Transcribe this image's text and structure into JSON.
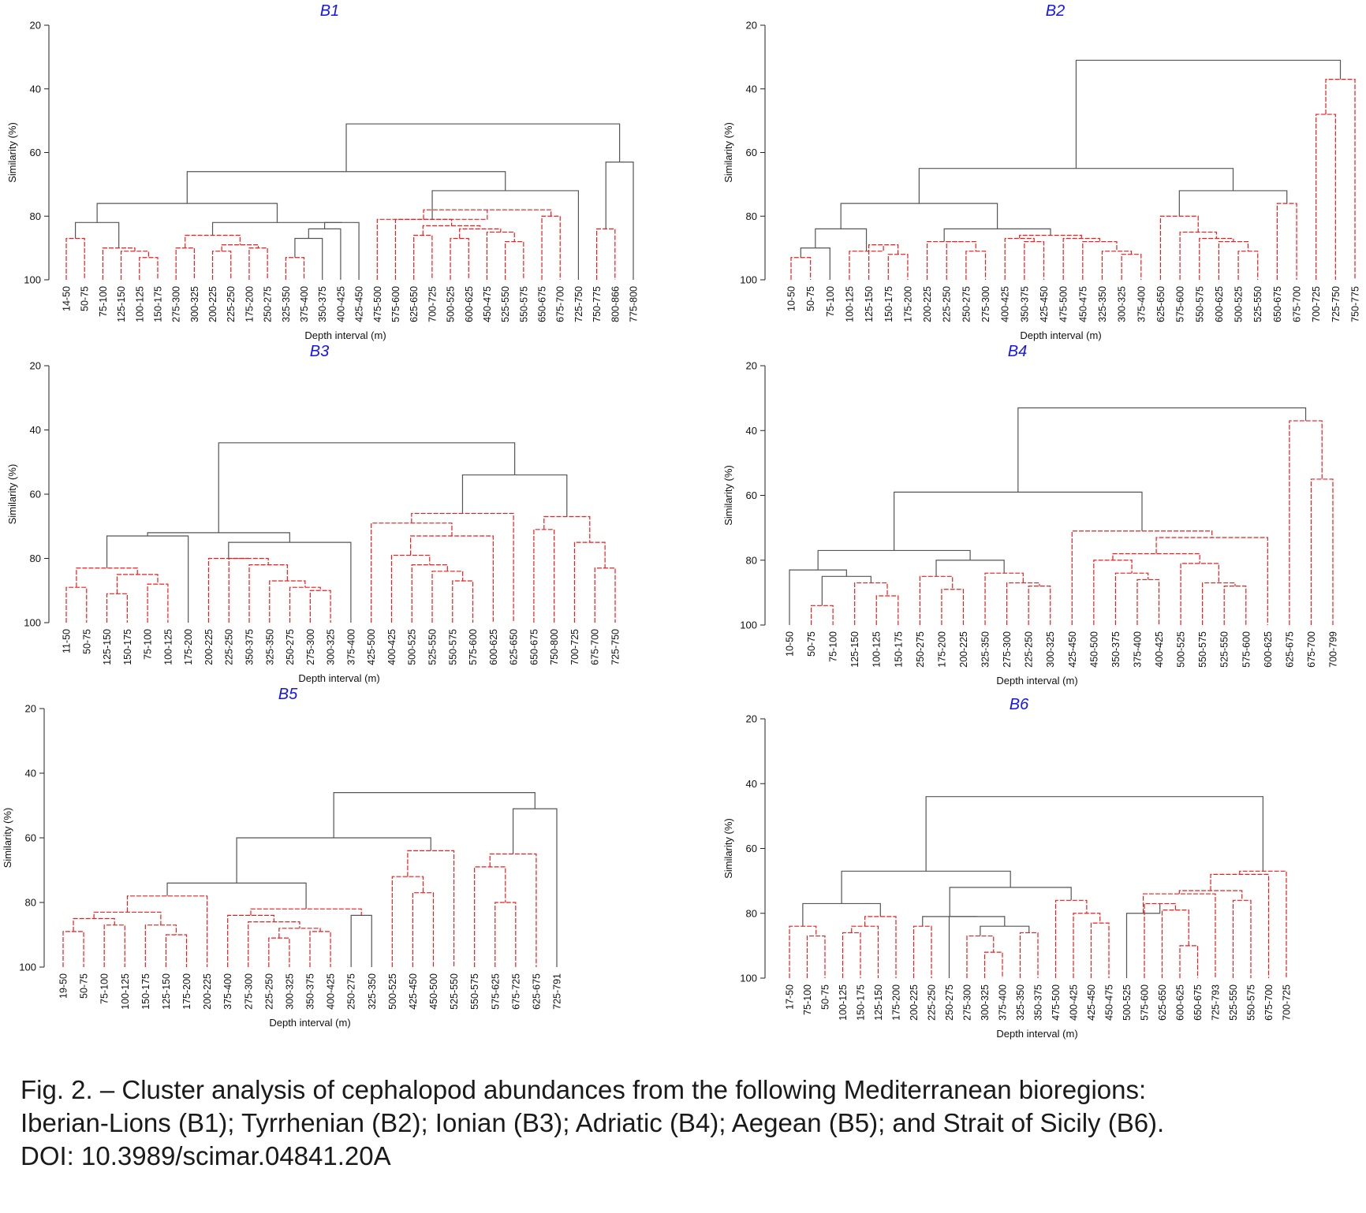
{
  "chart_data": [
    {
      "type": "dendrogram",
      "title": "B1",
      "xlabel": "Depth interval (m)",
      "ylabel": "Similarity (%)",
      "ylim": [
        20,
        100
      ],
      "yticks": [
        20,
        40,
        60,
        80,
        100
      ],
      "leaves": [
        "14-50",
        "50-75",
        "75-100",
        "125-150",
        "100-125",
        "150-175",
        "275-300",
        "300-325",
        "200-225",
        "225-250",
        "175-200",
        "250-275",
        "325-350",
        "375-400",
        "350-375",
        "400-425",
        "425-450",
        "475-500",
        "575-600",
        "625-650",
        "700-725",
        "500-525",
        "600-625",
        "450-475",
        "525-550",
        "550-575",
        "650-675",
        "675-700",
        "725-750",
        "750-775",
        "800-866",
        "775-800"
      ],
      "merges": [
        [
          "L:0",
          "L:1",
          87,
          "sig"
        ],
        [
          "L:4",
          "L:5",
          93,
          "sig"
        ],
        [
          "L:3",
          "N:1",
          91,
          "sig"
        ],
        [
          "L:2",
          "N:2",
          90,
          "sig"
        ],
        [
          "N:0",
          "N:3",
          82,
          "ns"
        ],
        [
          "L:6",
          "L:7",
          90,
          "sig"
        ],
        [
          "L:8",
          "L:9",
          91,
          "sig"
        ],
        [
          "L:10",
          "L:11",
          90,
          "sig"
        ],
        [
          "N:6",
          "N:7",
          89,
          "sig"
        ],
        [
          "N:5",
          "N:8",
          86,
          "sig"
        ],
        [
          "L:12",
          "L:13",
          93,
          "sig"
        ],
        [
          "N:10",
          "L:14",
          87,
          "ns"
        ],
        [
          "N:11",
          "L:15",
          84,
          "ns"
        ],
        [
          "L:16",
          "N:12",
          82,
          "ns"
        ],
        [
          "N:9",
          "N:13",
          82,
          "ns"
        ],
        [
          "N:4",
          "N:14",
          76,
          "ns"
        ],
        [
          "L:19",
          "L:20",
          86,
          "sig"
        ],
        [
          "L:21",
          "L:22",
          87,
          "sig"
        ],
        [
          "L:24",
          "L:25",
          88,
          "sig"
        ],
        [
          "L:23",
          "N:18",
          85,
          "sig"
        ],
        [
          "N:17",
          "N:19",
          84,
          "sig"
        ],
        [
          "N:16",
          "N:20",
          83,
          "sig"
        ],
        [
          "L:18",
          "N:21",
          81,
          "sig"
        ],
        [
          "L:26",
          "L:27",
          80,
          "sig"
        ],
        [
          "N:22",
          "N:23",
          78,
          "sig"
        ],
        [
          "L:17",
          "N:24",
          81,
          "sig"
        ],
        [
          "N:25",
          "L:28",
          72,
          "ns"
        ],
        [
          "N:15",
          "N:26",
          66,
          "ns"
        ],
        [
          "L:29",
          "L:30",
          84,
          "sig"
        ],
        [
          "N:28",
          "L:31",
          63,
          "ns"
        ],
        [
          "N:27",
          "N:29",
          51,
          "ns"
        ]
      ]
    },
    {
      "type": "dendrogram",
      "title": "B2",
      "xlabel": "Depth interval (m)",
      "ylabel": "Similarity (%)",
      "ylim": [
        20,
        100
      ],
      "yticks": [
        20,
        40,
        60,
        80,
        100
      ],
      "leaves": [
        "10-50",
        "50-75",
        "75-100",
        "100-125",
        "125-150",
        "150-175",
        "175-200",
        "200-225",
        "225-250",
        "250-275",
        "275-300",
        "400-425",
        "350-375",
        "425-450",
        "475-500",
        "450-475",
        "325-350",
        "300-325",
        "375-400",
        "625-650",
        "575-600",
        "550-575",
        "600-625",
        "500-525",
        "525-550",
        "650-675",
        "675-700",
        "700-725",
        "725-750",
        "750-775"
      ],
      "merges": [
        [
          "L:0",
          "L:1",
          93,
          "sig"
        ],
        [
          "N:0",
          "L:2",
          90,
          "ns"
        ],
        [
          "L:5",
          "L:6",
          92,
          "sig"
        ],
        [
          "L:4",
          "N:2",
          89,
          "sig"
        ],
        [
          "L:3",
          "N:3",
          91,
          "sig"
        ],
        [
          "N:1",
          "N:4",
          84,
          "ns"
        ],
        [
          "L:9",
          "L:10",
          91,
          "sig"
        ],
        [
          "L:8",
          "N:6",
          88,
          "sig"
        ],
        [
          "L:7",
          "N:7",
          88,
          "sig"
        ],
        [
          "L:12",
          "L:13",
          88,
          "sig"
        ],
        [
          "L:11",
          "N:9",
          87,
          "sig"
        ],
        [
          "L:17",
          "L:18",
          92,
          "sig"
        ],
        [
          "L:16",
          "N:11",
          91,
          "sig"
        ],
        [
          "L:15",
          "N:12",
          88,
          "sig"
        ],
        [
          "L:14",
          "N:13",
          87,
          "sig"
        ],
        [
          "N:10",
          "N:14",
          86,
          "sig"
        ],
        [
          "N:8",
          "N:15",
          84,
          "ns"
        ],
        [
          "N:5",
          "N:16",
          76,
          "ns"
        ],
        [
          "L:23",
          "L:24",
          91,
          "sig"
        ],
        [
          "L:22",
          "N:18",
          88,
          "sig"
        ],
        [
          "L:21",
          "N:19",
          87,
          "sig"
        ],
        [
          "L:20",
          "N:20",
          85,
          "sig"
        ],
        [
          "L:19",
          "N:21",
          80,
          "sig"
        ],
        [
          "L:25",
          "L:26",
          76,
          "sig"
        ],
        [
          "N:22",
          "N:23",
          72,
          "ns"
        ],
        [
          "N:17",
          "N:24",
          65,
          "ns"
        ],
        [
          "L:27",
          "L:28",
          48,
          "sig"
        ],
        [
          "N:26",
          "L:29",
          37,
          "sig"
        ],
        [
          "N:25",
          "N:27",
          31,
          "ns"
        ]
      ]
    },
    {
      "type": "dendrogram",
      "title": "B3",
      "xlabel": "Depth interval (m)",
      "ylabel": "Similarity (%)",
      "ylim": [
        20,
        100
      ],
      "yticks": [
        20,
        40,
        60,
        80,
        100
      ],
      "leaves": [
        "11-50",
        "50-75",
        "125-150",
        "150-175",
        "75-100",
        "100-125",
        "175-200",
        "200-225",
        "225-250",
        "350-375",
        "325-350",
        "250-275",
        "275-300",
        "300-325",
        "375-400",
        "425-500",
        "400-425",
        "500-525",
        "525-550",
        "550-575",
        "575-600",
        "600-625",
        "625-650",
        "650-675",
        "750-800",
        "700-725",
        "675-700",
        "725-750"
      ],
      "merges": [
        [
          "L:0",
          "L:1",
          89,
          "sig"
        ],
        [
          "L:2",
          "L:3",
          91,
          "sig"
        ],
        [
          "L:4",
          "L:5",
          88,
          "sig"
        ],
        [
          "N:1",
          "N:2",
          85,
          "sig"
        ],
        [
          "N:0",
          "N:3",
          83,
          "sig"
        ],
        [
          "N:4",
          "L:6",
          73,
          "ns"
        ],
        [
          "L:12",
          "L:13",
          90,
          "sig"
        ],
        [
          "L:11",
          "N:6",
          89,
          "sig"
        ],
        [
          "L:10",
          "N:7",
          87,
          "sig"
        ],
        [
          "L:9",
          "N:8",
          82,
          "sig"
        ],
        [
          "L:8",
          "N:9",
          80,
          "sig"
        ],
        [
          "L:7",
          "N:10",
          80,
          "sig"
        ],
        [
          "N:11",
          "L:14",
          75,
          "ns"
        ],
        [
          "N:5",
          "N:12",
          72,
          "ns"
        ],
        [
          "L:19",
          "L:20",
          87,
          "sig"
        ],
        [
          "L:18",
          "N:14",
          84,
          "sig"
        ],
        [
          "L:17",
          "N:15",
          82,
          "sig"
        ],
        [
          "L:16",
          "N:16",
          79,
          "sig"
        ],
        [
          "N:17",
          "L:21",
          73,
          "sig"
        ],
        [
          "L:15",
          "N:18",
          69,
          "sig"
        ],
        [
          "N:19",
          "L:22",
          66,
          "sig"
        ],
        [
          "L:26",
          "L:27",
          83,
          "sig"
        ],
        [
          "L:25",
          "N:21",
          75,
          "sig"
        ],
        [
          "L:23",
          "L:24",
          71,
          "sig"
        ],
        [
          "N:23",
          "N:22",
          67,
          "sig"
        ],
        [
          "N:20",
          "N:24",
          54,
          "ns"
        ],
        [
          "N:13",
          "N:25",
          44,
          "ns"
        ]
      ]
    },
    {
      "type": "dendrogram",
      "title": "B4",
      "xlabel": "Depth interval (m)",
      "ylabel": "Similarity (%)",
      "ylim": [
        20,
        100
      ],
      "yticks": [
        20,
        40,
        60,
        80,
        100
      ],
      "leaves": [
        "10-50",
        "50-75",
        "75-100",
        "125-150",
        "100-125",
        "150-175",
        "250-275",
        "175-200",
        "200-225",
        "325-350",
        "275-300",
        "225-250",
        "300-325",
        "425-450",
        "450-500",
        "350-375",
        "375-400",
        "400-425",
        "500-525",
        "550-575",
        "525-550",
        "575-600",
        "600-625",
        "625-675",
        "675-700",
        "700-799"
      ],
      "merges": [
        [
          "L:1",
          "L:2",
          94,
          "sig"
        ],
        [
          "L:4",
          "L:5",
          91,
          "sig"
        ],
        [
          "L:3",
          "N:1",
          87,
          "sig"
        ],
        [
          "N:0",
          "N:2",
          85,
          "ns"
        ],
        [
          "L:0",
          "N:3",
          83,
          "ns"
        ],
        [
          "L:7",
          "L:8",
          89,
          "sig"
        ],
        [
          "L:6",
          "N:5",
          85,
          "sig"
        ],
        [
          "L:11",
          "L:12",
          88,
          "sig"
        ],
        [
          "L:10",
          "N:7",
          87,
          "sig"
        ],
        [
          "L:9",
          "N:8",
          84,
          "sig"
        ],
        [
          "N:6",
          "N:9",
          80,
          "ns"
        ],
        [
          "N:4",
          "N:10",
          77,
          "ns"
        ],
        [
          "L:16",
          "L:17",
          86,
          "sig"
        ],
        [
          "L:15",
          "N:12",
          84,
          "sig"
        ],
        [
          "L:14",
          "N:13",
          80,
          "sig"
        ],
        [
          "L:20",
          "L:21",
          88,
          "sig"
        ],
        [
          "L:19",
          "N:15",
          87,
          "sig"
        ],
        [
          "L:18",
          "N:16",
          81,
          "sig"
        ],
        [
          "N:14",
          "N:17",
          78,
          "sig"
        ],
        [
          "N:18",
          "L:22",
          73,
          "sig"
        ],
        [
          "L:13",
          "N:19",
          71,
          "sig"
        ],
        [
          "N:11",
          "N:20",
          59,
          "ns"
        ],
        [
          "L:24",
          "L:25",
          55,
          "sig"
        ],
        [
          "L:23",
          "N:22",
          37,
          "sig"
        ],
        [
          "N:21",
          "N:23",
          33,
          "ns"
        ]
      ]
    },
    {
      "type": "dendrogram",
      "title": "B5",
      "xlabel": "Depth interval (m)",
      "ylabel": "Similarity (%)",
      "ylim": [
        20,
        100
      ],
      "yticks": [
        20,
        40,
        60,
        80,
        100
      ],
      "leaves": [
        "19-50",
        "50-75",
        "75-100",
        "100-125",
        "150-175",
        "125-150",
        "175-200",
        "200-225",
        "375-400",
        "275-300",
        "225-250",
        "300-325",
        "350-375",
        "400-425",
        "250-275",
        "325-350",
        "500-525",
        "425-450",
        "450-500",
        "525-550",
        "550-575",
        "575-625",
        "675-725",
        "625-675",
        "725-791"
      ],
      "merges": [
        [
          "L:0",
          "L:1",
          89,
          "sig"
        ],
        [
          "L:2",
          "L:3",
          87,
          "sig"
        ],
        [
          "N:0",
          "N:1",
          85,
          "sig"
        ],
        [
          "L:5",
          "L:6",
          90,
          "sig"
        ],
        [
          "L:4",
          "N:3",
          87,
          "sig"
        ],
        [
          "N:2",
          "N:4",
          83,
          "sig"
        ],
        [
          "N:5",
          "L:7",
          78,
          "sig"
        ],
        [
          "L:10",
          "L:11",
          91,
          "sig"
        ],
        [
          "L:12",
          "L:13",
          89,
          "sig"
        ],
        [
          "N:7",
          "N:8",
          88,
          "sig"
        ],
        [
          "L:9",
          "N:9",
          86,
          "sig"
        ],
        [
          "L:8",
          "N:10",
          84,
          "sig"
        ],
        [
          "L:14",
          "L:15",
          84,
          "ns"
        ],
        [
          "N:11",
          "N:12",
          82,
          "sig"
        ],
        [
          "N:6",
          "N:13",
          74,
          "ns"
        ],
        [
          "L:17",
          "L:18",
          77,
          "sig"
        ],
        [
          "L:16",
          "N:15",
          72,
          "sig"
        ],
        [
          "N:16",
          "L:19",
          64,
          "sig"
        ],
        [
          "N:14",
          "N:17",
          60,
          "ns"
        ],
        [
          "L:21",
          "L:22",
          80,
          "sig"
        ],
        [
          "L:20",
          "N:19",
          69,
          "sig"
        ],
        [
          "N:20",
          "L:23",
          65,
          "sig"
        ],
        [
          "N:21",
          "L:24",
          51,
          "ns"
        ],
        [
          "N:18",
          "N:22",
          46,
          "ns"
        ]
      ]
    },
    {
      "type": "dendrogram",
      "title": "B6",
      "xlabel": "Depth interval (m)",
      "ylabel": "Similarity (%)",
      "ylim": [
        20,
        100
      ],
      "yticks": [
        20,
        40,
        60,
        80,
        100
      ],
      "leaves": [
        "17-50",
        "75-100",
        "50-75",
        "100-125",
        "150-175",
        "125-150",
        "175-200",
        "200-225",
        "225-250",
        "250-275",
        "275-300",
        "300-325",
        "375-400",
        "325-350",
        "350-375",
        "475-500",
        "400-425",
        "425-450",
        "450-475",
        "500-525",
        "575-600",
        "625-650",
        "600-625",
        "650-675",
        "725-793",
        "525-550",
        "550-575",
        "675-700",
        "700-725"
      ],
      "merges": [
        [
          "L:1",
          "L:2",
          87,
          "sig"
        ],
        [
          "L:0",
          "N:0",
          84,
          "sig"
        ],
        [
          "L:3",
          "L:4",
          86,
          "sig"
        ],
        [
          "N:2",
          "L:5",
          84,
          "sig"
        ],
        [
          "N:3",
          "L:6",
          81,
          "sig"
        ],
        [
          "N:1",
          "N:4",
          77,
          "ns"
        ],
        [
          "L:7",
          "L:8",
          84,
          "sig"
        ],
        [
          "L:11",
          "L:12",
          92,
          "sig"
        ],
        [
          "L:10",
          "N:7",
          87,
          "sig"
        ],
        [
          "L:13",
          "L:14",
          86,
          "sig"
        ],
        [
          "N:8",
          "N:9",
          84,
          "ns"
        ],
        [
          "L:9",
          "N:10",
          81,
          "ns"
        ],
        [
          "N:6",
          "N:11",
          81,
          "ns"
        ],
        [
          "L:17",
          "L:18",
          83,
          "sig"
        ],
        [
          "L:16",
          "N:13",
          80,
          "sig"
        ],
        [
          "L:15",
          "N:14",
          76,
          "sig"
        ],
        [
          "N:12",
          "N:15",
          72,
          "ns"
        ],
        [
          "N:5",
          "N:16",
          67,
          "ns"
        ],
        [
          "L:22",
          "L:23",
          90,
          "sig"
        ],
        [
          "N:18",
          "L:21",
          79,
          "sig"
        ],
        [
          "L:20",
          "N:19",
          77,
          "sig"
        ],
        [
          "L:19",
          "N:20",
          80,
          "ns"
        ],
        [
          "N:21",
          "L:24",
          74,
          "sig"
        ],
        [
          "L:25",
          "L:26",
          76,
          "sig"
        ],
        [
          "N:22",
          "N:23",
          73,
          "sig"
        ],
        [
          "N:24",
          "L:27",
          68,
          "sig"
        ],
        [
          "N:25",
          "L:28",
          67,
          "sig"
        ],
        [
          "N:17",
          "N:26",
          44,
          "ns"
        ]
      ]
    }
  ],
  "colors": {
    "significant": "#ee1c1c",
    "nonsignificant": "#555555",
    "title": "#1515ee",
    "text": "#111111"
  },
  "caption": {
    "line1": "Fig. 2. – Cluster analysis of cephalopod abundances from the following Mediterranean bioregions:",
    "line2": "Iberian-Lions (B1); Tyrrhenian (B2); Ionian (B3); Adriatic (B4); Aegean (B5); and Strait of Sicily (B6).",
    "line3": "DOI: 10.3989/scimar.04841.20A"
  }
}
